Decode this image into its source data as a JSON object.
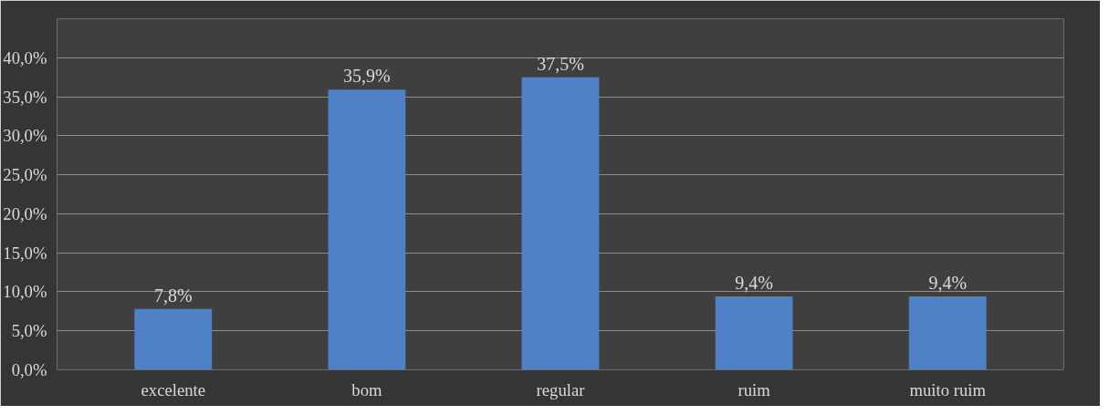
{
  "chart_data": {
    "type": "bar",
    "categories": [
      "excelente",
      "bom",
      "regular",
      "ruim",
      "muito ruim"
    ],
    "values": [
      7.8,
      35.9,
      37.5,
      9.4,
      9.4
    ],
    "value_labels": [
      "7,8%",
      "35,9%",
      "37,5%",
      "9,4%",
      "9,4%"
    ],
    "color": "#4f81c7",
    "ylim": [
      0,
      45
    ],
    "yticks": [
      {
        "value": 0,
        "label": "0,0%"
      },
      {
        "value": 5,
        "label": "5,0%"
      },
      {
        "value": 10,
        "label": "10,0%"
      },
      {
        "value": 15,
        "label": "15,0%"
      },
      {
        "value": 20,
        "label": "20,0%"
      },
      {
        "value": 25,
        "label": "25,0%"
      },
      {
        "value": 30,
        "label": "30,0%"
      },
      {
        "value": 35,
        "label": "35,0%"
      },
      {
        "value": 40,
        "label": "40,0%"
      },
      {
        "value": 45,
        "label": null
      }
    ],
    "grid": "y"
  }
}
